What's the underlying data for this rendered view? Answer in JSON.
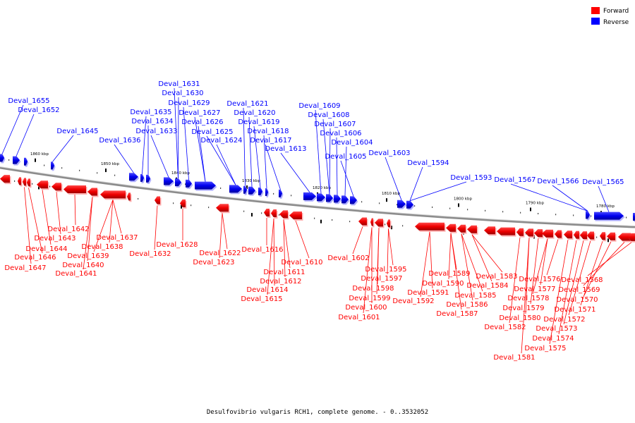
{
  "caption": "Desulfovibrio vulgaris RCH1, complete genome. - 0..3532052",
  "legend": [
    {
      "label": "Forward",
      "color": "#ff0000"
    },
    {
      "label": "Reverse",
      "color": "#0000ff"
    }
  ],
  "colors": {
    "forward": "#ff0000",
    "reverse": "#0000ff",
    "backbone": "#8c8c8c"
  },
  "scale_ticks": [
    "1860 kbp",
    "1850 kbp",
    "1840 kbp",
    "1830 kbp",
    "1820 kbp",
    "1810 kbp",
    "1800 kbp",
    "1790 kbp",
    "1780 kbp"
  ],
  "reverse_labels": [
    "Deval_1655",
    "Deval_1652",
    "Deval_1645",
    "Deval_1636",
    "Deval_1635",
    "Deval_1634",
    "Deval_1633",
    "Deval_1631",
    "Deval_1630",
    "Deval_1629",
    "Deval_1627",
    "Deval_1626",
    "Deval_1625",
    "Deval_1624",
    "Deval_1621",
    "Deval_1620",
    "Deval_1619",
    "Deval_1618",
    "Deval_1617",
    "Deval_1613",
    "Deval_1609",
    "Deval_1608",
    "Deval_1607",
    "Deval_1606",
    "Deval_1604",
    "Deval_1605",
    "Deval_1603",
    "Deval_1594",
    "Deval_1593",
    "Deval_1567",
    "Deval_1566",
    "Deval_1565"
  ],
  "forward_labels": [
    "Deval_1642",
    "Deval_1643",
    "Deval_1644",
    "Deval_1646",
    "Deval_1647",
    "Deval_1637",
    "Deval_1638",
    "Deval_1639",
    "Deval_1640",
    "Deval_1641",
    "Deval_1628",
    "Deval_1632",
    "Deval_1622",
    "Deval_1623",
    "Deval_1616",
    "Deval_1610",
    "Deval_1611",
    "Deval_1612",
    "Deval_1614",
    "Deval_1615",
    "Deval_1602",
    "Deval_1595",
    "Deval_1597",
    "Deval_1598",
    "Deval_1599",
    "Deval_1600",
    "Deval_1601",
    "Deval_1589",
    "Deval_1590",
    "Deval_1591",
    "Deval_1592",
    "Deval_1583",
    "Deval_1584",
    "Deval_1585",
    "Deval_1586",
    "Deval_1587",
    "Deval_1576",
    "Deval_1577",
    "Deval_1578",
    "Deval_1579",
    "Deval_1580",
    "Deval_1582",
    "Deval_1581",
    "Deval_1568",
    "Deval_1569",
    "Deval_1570",
    "Deval_1571",
    "Deval_1572",
    "Deval_1573",
    "Deval_1574",
    "Deval_1575"
  ]
}
